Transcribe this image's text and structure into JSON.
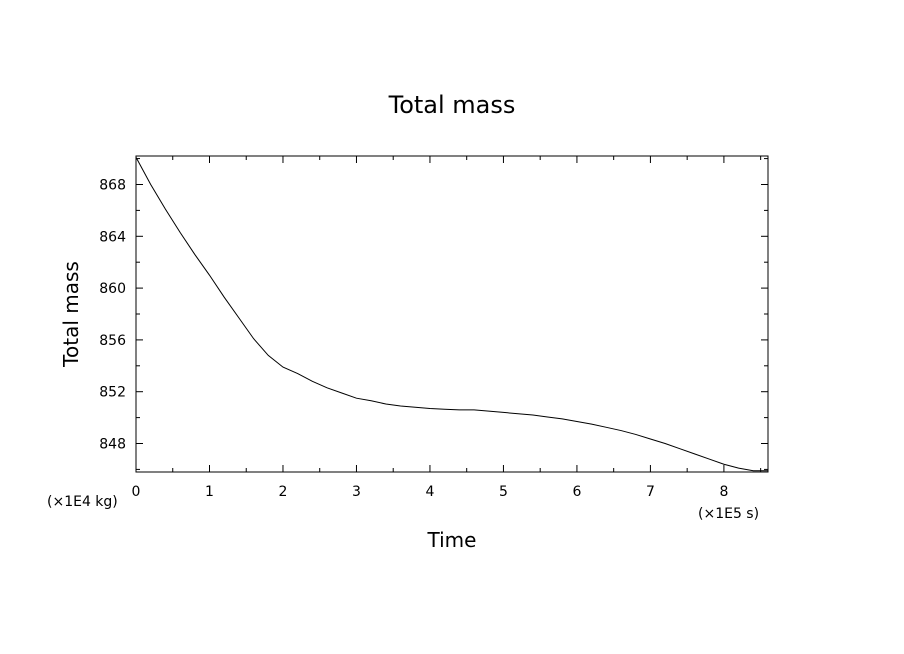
{
  "chart_data": {
    "type": "line",
    "title": "Total mass",
    "xlabel": "Time",
    "ylabel": "Total mass",
    "x_multiplier": "(×1E5 s)",
    "y_multiplier": "(×1E4 kg)",
    "xlim": [
      0,
      8.6
    ],
    "ylim": [
      845.8,
      870.2
    ],
    "x_ticks": [
      0,
      1,
      2,
      3,
      4,
      5,
      6,
      7,
      8
    ],
    "x_tick_labels": [
      "0",
      "1",
      "2",
      "3",
      "4",
      "5",
      "6",
      "7",
      "8"
    ],
    "y_ticks": [
      848,
      852,
      856,
      860,
      864,
      868
    ],
    "y_tick_labels": [
      "848",
      "852",
      "856",
      "860",
      "864",
      "868"
    ],
    "grid": false,
    "series": [
      {
        "x": [
          0,
          0.2,
          0.4,
          0.6,
          0.8,
          1.0,
          1.2,
          1.4,
          1.6,
          1.8,
          2.0,
          2.2,
          2.4,
          2.6,
          2.8,
          3.0,
          3.2,
          3.4,
          3.6,
          3.8,
          4.0,
          4.2,
          4.4,
          4.6,
          4.8,
          5.0,
          5.2,
          5.4,
          5.6,
          5.8,
          6.0,
          6.2,
          6.4,
          6.6,
          6.8,
          7.0,
          7.2,
          7.4,
          7.6,
          7.8,
          8.0,
          8.2,
          8.4,
          8.6
        ],
        "values": [
          870.1,
          868.0,
          866.1,
          864.3,
          862.6,
          861.0,
          859.3,
          857.7,
          856.1,
          854.8,
          853.9,
          853.4,
          852.8,
          852.3,
          851.9,
          851.5,
          851.3,
          851.05,
          850.9,
          850.8,
          850.7,
          850.65,
          850.6,
          850.6,
          850.5,
          850.4,
          850.3,
          850.2,
          850.05,
          849.9,
          849.7,
          849.5,
          849.25,
          849.0,
          848.7,
          848.35,
          848.0,
          847.6,
          847.2,
          846.8,
          846.4,
          846.1,
          845.9,
          845.9
        ]
      }
    ]
  }
}
